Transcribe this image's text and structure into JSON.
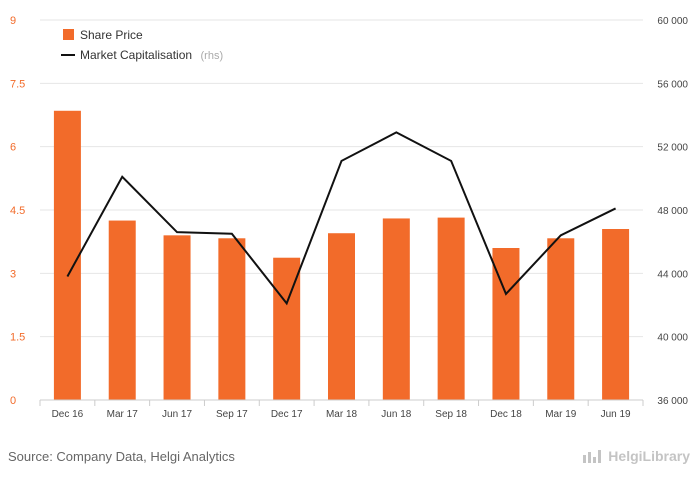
{
  "chart_data": {
    "type": "bar+line",
    "categories": [
      "Dec 16",
      "Mar 17",
      "Jun 17",
      "Sep 17",
      "Dec 17",
      "Mar 18",
      "Jun 18",
      "Sep 18",
      "Dec 18",
      "Mar 19",
      "Jun 19"
    ],
    "series": [
      {
        "name": "Share Price",
        "type": "bar",
        "axis": "left",
        "color": "#f26b2a",
        "values": [
          6.85,
          4.25,
          3.9,
          3.83,
          3.37,
          3.95,
          4.3,
          4.32,
          3.6,
          3.83,
          4.05
        ]
      },
      {
        "name": "Market Capitalisation",
        "type": "line",
        "axis": "right",
        "color": "#111111",
        "values": [
          43800,
          50100,
          46600,
          46500,
          42100,
          51100,
          52900,
          51100,
          42700,
          46400,
          48100
        ]
      }
    ],
    "y_left": {
      "ylim": [
        0,
        9
      ],
      "ticks": [
        "0",
        "1.5",
        "3",
        "4.5",
        "6",
        "7.5",
        "9"
      ],
      "tick_values": [
        0,
        1.5,
        3,
        4.5,
        6,
        7.5,
        9
      ]
    },
    "y_right": {
      "ylim": [
        36000,
        60000
      ],
      "ticks": [
        "36 000",
        "40 000",
        "44 000",
        "48 000",
        "52 000",
        "56 000",
        "60 000"
      ],
      "tick_values": [
        36000,
        40000,
        44000,
        48000,
        52000,
        56000,
        60000
      ]
    },
    "legend": {
      "position": "top-left",
      "rhs_note": "(rhs)"
    },
    "grid": true
  },
  "footer": {
    "source": "Source: Company Data, Helgi Analytics",
    "logo": "HelgiLibrary"
  }
}
